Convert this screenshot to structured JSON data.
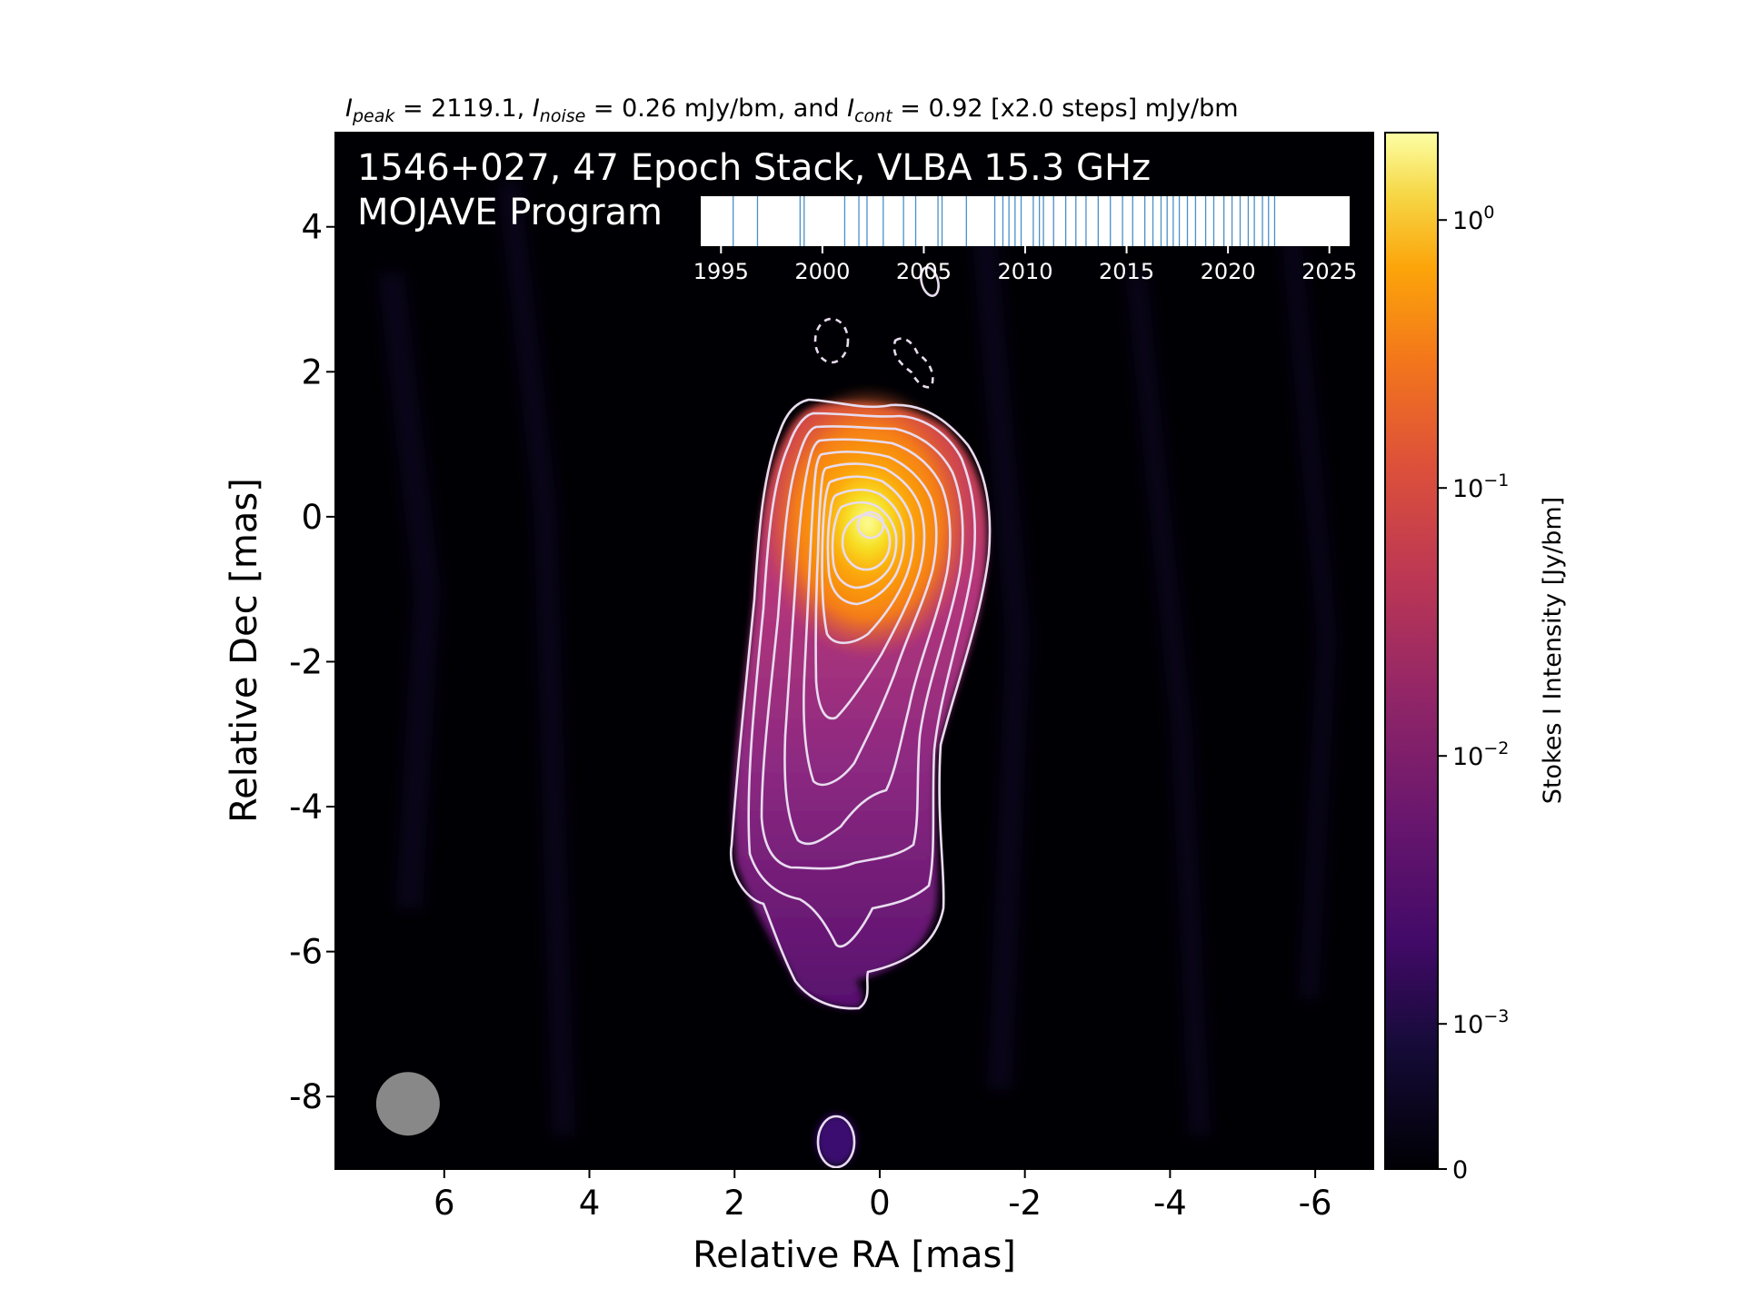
{
  "header": {
    "peak_label": "I",
    "peak_sub": "peak",
    "peak_value": " = 2119.1, ",
    "noise_label": "I",
    "noise_sub": "noise",
    "noise_value": " = 0.26 mJy/bm, and ",
    "cont_label": "I",
    "cont_sub": "cont",
    "cont_value": " = 0.92 [x2.0 steps] mJy/bm"
  },
  "overlay": {
    "line1": "1546+027, 47 Epoch Stack, VLBA 15.3 GHz",
    "line2": "MOJAVE Program"
  },
  "colors": {
    "background": "#000004",
    "colormap": "inferno",
    "contour": "#e8dcef",
    "beam": "#888888",
    "epoch_line": "#4a90c8"
  },
  "chart_data": {
    "type": "heatmap",
    "xlabel": "Relative RA [mas]",
    "ylabel": "Relative Dec [mas]",
    "xlim": [
      7.5,
      -6.8
    ],
    "ylim": [
      -9,
      5.3
    ],
    "x_ticks": [
      6,
      4,
      2,
      0,
      -2,
      -4,
      -6
    ],
    "x_tick_labels": [
      "6",
      "4",
      "2",
      "0",
      "-2",
      "-4",
      "-6"
    ],
    "y_ticks": [
      4,
      2,
      0,
      -2,
      -4,
      -6,
      -8
    ],
    "y_tick_labels": [
      "4",
      "2",
      "0",
      "-2",
      "-4",
      "-6",
      "-8"
    ],
    "colorbar": {
      "label": "Stokes I Intensity [Jy/bm]",
      "scale": "log",
      "ticks": [
        {
          "value": 1,
          "base": "10",
          "exp": "0"
        },
        {
          "value": 0.1,
          "base": "10",
          "exp": "−1"
        },
        {
          "value": 0.01,
          "base": "10",
          "exp": "−2"
        },
        {
          "value": 0.001,
          "base": "10",
          "exp": "−3"
        },
        {
          "value": 0,
          "base": "0",
          "exp": ""
        }
      ],
      "vmax": 2.1191
    },
    "peak_position": {
      "ra": 0.0,
      "dec": -0.1
    },
    "peak_jy_bm": 2.1191,
    "noise_mjy_bm": 0.26,
    "contour_base_mjy_bm": 0.92,
    "contour_step": 2.0,
    "beam": {
      "ra": 6.5,
      "dec": -8.1
    },
    "epoch_inset": {
      "xlim": [
        1994,
        2026
      ],
      "ticks": [
        1995,
        2000,
        2005,
        2010,
        2015,
        2020,
        2025
      ],
      "tick_labels": [
        "1995",
        "2000",
        "2005",
        "2010",
        "2015",
        "2020",
        "2025"
      ],
      "epochs": [
        1995.6,
        1996.8,
        1998.9,
        1999.1,
        2001.1,
        2001.8,
        2002.2,
        2003.0,
        2004.0,
        2004.6,
        2005.7,
        2005.9,
        2007.1,
        2008.5,
        2008.9,
        2009.2,
        2009.5,
        2009.8,
        2010.4,
        2010.7,
        2010.9,
        2011.4,
        2012.0,
        2012.5,
        2013.0,
        2013.6,
        2014.2,
        2014.8,
        2015.3,
        2015.9,
        2016.3,
        2016.7,
        2017.0,
        2017.3,
        2017.6,
        2018.0,
        2018.4,
        2018.9,
        2019.3,
        2019.8,
        2020.2,
        2020.6,
        2021.0,
        2021.3,
        2021.7,
        2022.0,
        2022.3
      ]
    }
  }
}
